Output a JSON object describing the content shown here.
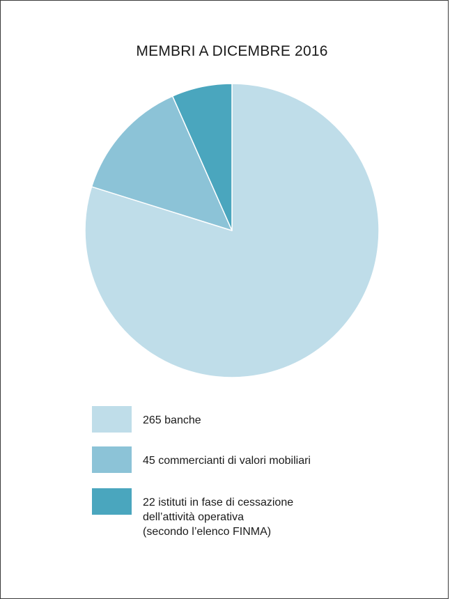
{
  "colors": {
    "banche": "#bfdde9",
    "commercianti": "#8cc3d7",
    "istituti": "#4aa6be",
    "slice_stroke": "#ffffff"
  },
  "chart_data": {
    "type": "pie",
    "title": "MEMBRI A DICEMBRE 2016",
    "slices": [
      {
        "label": "265 banche",
        "value": 265,
        "color": "#bfdde9"
      },
      {
        "label": "45 commercianti di valori mobiliari",
        "value": 45,
        "color": "#8cc3d7"
      },
      {
        "label": "22 istituti in fase di cessazione\ndell’attività operativa\n(secondo l’elenco FINMA)",
        "value": 22,
        "color": "#4aa6be"
      }
    ],
    "legend_position": "bottom-left"
  }
}
